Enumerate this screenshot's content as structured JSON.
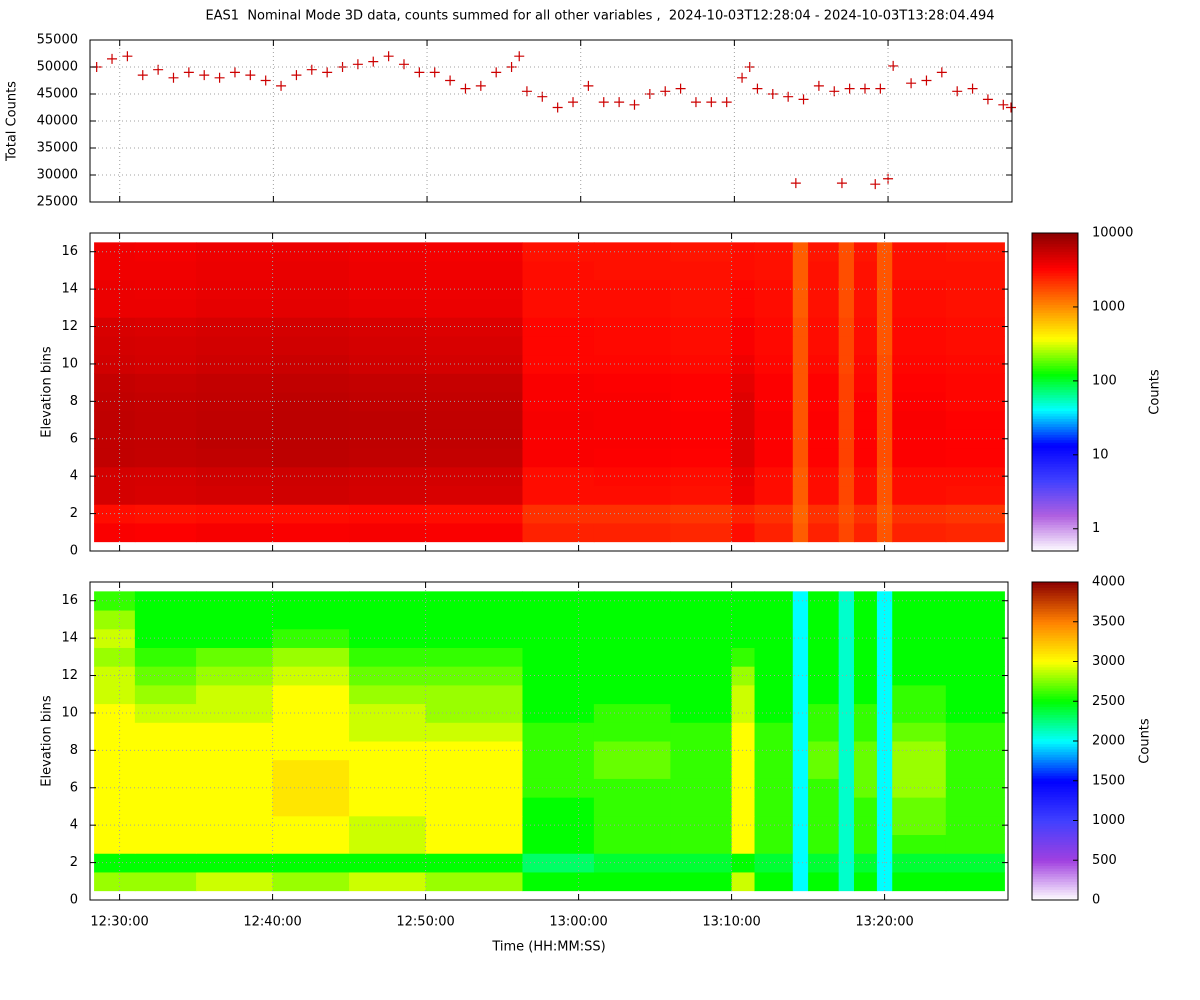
{
  "chart_data": [
    {
      "type": "scatter",
      "title": "EAS1  Nominal Mode 3D data, counts summed for all other variables ,  2024-10-03T12:28:04 - 2024-10-03T13:28:04.494",
      "ylabel": "Total Counts",
      "color": "#cc0000",
      "grid": true,
      "xlim": [
        "12:28:04",
        "13:28:04"
      ],
      "ylim": [
        25000,
        55000
      ],
      "yticks": [
        25000,
        30000,
        35000,
        40000,
        45000,
        50000,
        55000
      ],
      "x": [
        "12:28:30",
        "12:29:30",
        "12:30:30",
        "12:31:30",
        "12:32:30",
        "12:33:30",
        "12:34:30",
        "12:35:30",
        "12:36:30",
        "12:37:30",
        "12:38:30",
        "12:39:30",
        "12:40:30",
        "12:41:30",
        "12:42:30",
        "12:43:30",
        "12:44:30",
        "12:45:30",
        "12:46:30",
        "12:47:30",
        "12:48:30",
        "12:49:30",
        "12:50:30",
        "12:51:30",
        "12:52:30",
        "12:53:30",
        "12:54:30",
        "12:55:30",
        "12:56:00",
        "12:56:30",
        "12:57:30",
        "12:58:30",
        "12:59:30",
        "13:00:30",
        "13:01:30",
        "13:02:30",
        "13:03:30",
        "13:04:30",
        "13:05:30",
        "13:06:30",
        "13:07:30",
        "13:08:30",
        "13:09:30",
        "13:10:30",
        "13:11:00",
        "13:11:30",
        "13:12:30",
        "13:13:30",
        "13:14:00",
        "13:14:30",
        "13:15:30",
        "13:16:30",
        "13:17:00",
        "13:17:30",
        "13:18:30",
        "13:19:10",
        "13:19:30",
        "13:20:00",
        "13:20:20",
        "13:21:30",
        "13:22:30",
        "13:23:30",
        "13:24:30",
        "13:25:30",
        "13:26:30",
        "13:27:30",
        "13:28:00"
      ],
      "values": [
        50000,
        51500,
        52000,
        48500,
        49500,
        48000,
        49000,
        48500,
        48000,
        49000,
        48500,
        47500,
        46500,
        48500,
        49500,
        49000,
        50000,
        50500,
        51000,
        52000,
        50500,
        49000,
        49000,
        47500,
        46000,
        46500,
        49000,
        50000,
        52000,
        45500,
        44500,
        42500,
        43500,
        46500,
        43500,
        43500,
        43000,
        45000,
        45500,
        46000,
        43500,
        43500,
        43500,
        48000,
        50000,
        46000,
        45000,
        44500,
        28500,
        44000,
        46500,
        45500,
        28500,
        46000,
        46000,
        28300,
        46000,
        29300,
        50200,
        47000,
        47500,
        49000,
        45500,
        46000,
        44000,
        43000,
        42500
      ]
    },
    {
      "type": "heatmap",
      "ylabel": "Elevation bins",
      "zlabel": "Counts",
      "grid": true,
      "xlim": [
        "12:28:04",
        "13:28:04"
      ],
      "ylim": [
        0,
        17
      ],
      "yticks": [
        0,
        2,
        4,
        6,
        8,
        10,
        12,
        14,
        16
      ],
      "zlim": [
        0.5,
        10000
      ],
      "zticks": [
        1,
        10,
        100,
        1000,
        10000
      ],
      "zlog": true,
      "palette": [
        "#ffffff",
        "#b060e0",
        "#4040ff",
        "#0000ff",
        "#00ffff",
        "#00ff00",
        "#ffff00",
        "#ff8000",
        "#ff0000",
        "#8b0000"
      ],
      "xbins": [
        "12:28:20",
        "12:31:00",
        "12:35:00",
        "12:40:00",
        "12:45:00",
        "12:50:00",
        "12:56:20",
        "13:01:00",
        "13:06:00",
        "13:10:00",
        "13:11:30",
        "13:14:00",
        "13:15:00",
        "13:17:00",
        "13:18:00",
        "13:19:30",
        "13:20:30",
        "13:24:00",
        "13:27:50"
      ],
      "y": [
        1,
        2,
        3,
        4,
        5,
        6,
        7,
        8,
        9,
        10,
        11,
        12,
        13,
        14,
        15,
        16
      ],
      "z": [
        [
          3500,
          3400,
          3600,
          3500,
          3600,
          3500,
          2500,
          2500,
          2400,
          3000,
          2500,
          1500,
          2500,
          1800,
          2500,
          1600,
          2500,
          2400
        ],
        [
          3000,
          2900,
          3000,
          3000,
          3100,
          3000,
          2200,
          2200,
          2100,
          2500,
          2200,
          1400,
          2200,
          1700,
          2200,
          1500,
          2200,
          2100
        ],
        [
          5000,
          4800,
          5000,
          5200,
          5000,
          4800,
          3000,
          3000,
          2900,
          3800,
          3000,
          1500,
          3000,
          1800,
          3000,
          1600,
          3000,
          2900
        ],
        [
          5000,
          4900,
          5200,
          5300,
          5100,
          5000,
          3000,
          3100,
          3000,
          4000,
          3000,
          1500,
          3000,
          1800,
          3000,
          1600,
          3000,
          3000
        ],
        [
          6000,
          5800,
          6000,
          6200,
          6000,
          5800,
          3500,
          3400,
          3300,
          4500,
          3400,
          1600,
          3300,
          1900,
          3300,
          1700,
          3400,
          3300
        ],
        [
          6000,
          5900,
          6200,
          6300,
          6100,
          6000,
          3500,
          3500,
          3400,
          4500,
          3400,
          1600,
          3300,
          1900,
          3300,
          1700,
          3400,
          3300
        ],
        [
          6100,
          5900,
          6100,
          6300,
          6200,
          6000,
          3600,
          3500,
          3400,
          4500,
          3500,
          1600,
          3400,
          1900,
          3300,
          1700,
          3500,
          3300
        ],
        [
          6000,
          5800,
          6000,
          6200,
          6000,
          5900,
          3500,
          3500,
          3300,
          4500,
          3400,
          1600,
          3300,
          1900,
          3300,
          1700,
          3400,
          3200
        ],
        [
          5800,
          5600,
          5900,
          6000,
          5800,
          5700,
          3500,
          3400,
          3300,
          4200,
          3400,
          1600,
          3300,
          1900,
          3200,
          1700,
          3300,
          3200
        ],
        [
          5200,
          5000,
          5300,
          5500,
          5200,
          5000,
          3200,
          3200,
          3100,
          3800,
          3200,
          1600,
          3100,
          1800,
          3100,
          1700,
          3200,
          3100
        ],
        [
          5000,
          4900,
          5100,
          5200,
          5000,
          4800,
          3200,
          3100,
          3000,
          3500,
          3100,
          1600,
          3000,
          1800,
          3000,
          1600,
          3100,
          3000
        ],
        [
          4800,
          4700,
          4900,
          5000,
          4800,
          4600,
          3200,
          3100,
          3000,
          3500,
          3100,
          1600,
          3000,
          1800,
          3000,
          1600,
          3100,
          3000
        ],
        [
          4000,
          4000,
          4200,
          4300,
          4100,
          4000,
          3000,
          3000,
          2900,
          3200,
          3000,
          1500,
          2900,
          1700,
          2900,
          1600,
          3000,
          2900
        ],
        [
          4000,
          3900,
          4100,
          4200,
          4000,
          3900,
          3000,
          3000,
          2900,
          3200,
          3000,
          1500,
          2900,
          1700,
          2900,
          1600,
          3000,
          2900
        ],
        [
          3800,
          3800,
          4000,
          4100,
          3900,
          3800,
          3000,
          2900,
          2900,
          3000,
          2900,
          1500,
          2900,
          1700,
          2900,
          1600,
          2900,
          2900
        ],
        [
          3800,
          3700,
          3900,
          4000,
          3800,
          3700,
          2900,
          2900,
          2800,
          3000,
          2900,
          1500,
          2800,
          1700,
          2800,
          1600,
          2900,
          2800
        ]
      ]
    },
    {
      "type": "heatmap",
      "ylabel": "Elevation bins",
      "zlabel": "Counts",
      "xlabel": "Time (HH:MM:SS)",
      "grid": true,
      "xlim": [
        "12:28:04",
        "13:28:04"
      ],
      "xticks": [
        "12:30:00",
        "12:40:00",
        "12:50:00",
        "13:00:00",
        "13:10:00",
        "13:20:00"
      ],
      "ylim": [
        0,
        17
      ],
      "yticks": [
        0,
        2,
        4,
        6,
        8,
        10,
        12,
        14,
        16
      ],
      "zlim": [
        0,
        4000
      ],
      "zticks": [
        0,
        500,
        1000,
        1500,
        2000,
        2500,
        3000,
        3500,
        4000
      ],
      "zlog": false,
      "palette": [
        "#ffffff",
        "#a040e0",
        "#4040ff",
        "#0000ff",
        "#00ffff",
        "#00ff00",
        "#ffff00",
        "#ff8000",
        "#8b0000"
      ],
      "xbins": [
        "12:28:20",
        "12:31:00",
        "12:35:00",
        "12:40:00",
        "12:45:00",
        "12:50:00",
        "12:56:20",
        "13:01:00",
        "13:06:00",
        "13:10:00",
        "13:11:30",
        "13:14:00",
        "13:15:00",
        "13:17:00",
        "13:18:00",
        "13:19:30",
        "13:20:30",
        "13:24:00",
        "13:27:50"
      ],
      "y": [
        1,
        2,
        3,
        4,
        5,
        6,
        7,
        8,
        9,
        10,
        11,
        12,
        13,
        14,
        15,
        16
      ],
      "z": [
        [
          2800,
          2800,
          2900,
          2800,
          2900,
          2800,
          2500,
          2500,
          2500,
          2900,
          2500,
          2000,
          2500,
          2100,
          2500,
          2000,
          2500,
          2500
        ],
        [
          2500,
          2500,
          2500,
          2500,
          2500,
          2500,
          2300,
          2400,
          2400,
          2500,
          2400,
          2000,
          2400,
          2100,
          2400,
          2000,
          2400,
          2400
        ],
        [
          3000,
          3000,
          3000,
          3000,
          2900,
          3000,
          2500,
          2600,
          2600,
          3000,
          2600,
          2000,
          2600,
          2100,
          2600,
          2000,
          2600,
          2600
        ],
        [
          3000,
          3000,
          3000,
          3000,
          2900,
          3000,
          2500,
          2600,
          2600,
          3000,
          2600,
          2000,
          2600,
          2100,
          2600,
          2000,
          2700,
          2600
        ],
        [
          3000,
          3000,
          3000,
          3100,
          3000,
          3000,
          2500,
          2600,
          2600,
          3000,
          2600,
          2000,
          2600,
          2100,
          2600,
          2000,
          2700,
          2600
        ],
        [
          3000,
          3000,
          3000,
          3100,
          3000,
          3000,
          2600,
          2600,
          2600,
          3000,
          2600,
          2000,
          2600,
          2100,
          2700,
          2000,
          2800,
          2600
        ],
        [
          3000,
          3000,
          3000,
          3100,
          3000,
          3000,
          2600,
          2700,
          2600,
          3000,
          2600,
          2000,
          2700,
          2100,
          2700,
          2000,
          2800,
          2600
        ],
        [
          3000,
          3000,
          3000,
          3000,
          3000,
          3000,
          2600,
          2700,
          2600,
          3000,
          2600,
          2000,
          2700,
          2100,
          2700,
          2000,
          2800,
          2600
        ],
        [
          3000,
          3000,
          3000,
          3000,
          2900,
          2900,
          2600,
          2600,
          2600,
          3000,
          2600,
          2000,
          2600,
          2100,
          2600,
          2000,
          2700,
          2600
        ],
        [
          3000,
          2900,
          2900,
          3000,
          2900,
          2800,
          2500,
          2600,
          2500,
          2900,
          2500,
          2000,
          2600,
          2100,
          2600,
          2000,
          2600,
          2500
        ],
        [
          2900,
          2800,
          2900,
          3000,
          2800,
          2800,
          2500,
          2500,
          2500,
          2900,
          2500,
          2000,
          2500,
          2100,
          2500,
          2000,
          2600,
          2500
        ],
        [
          2900,
          2700,
          2800,
          2900,
          2700,
          2700,
          2500,
          2500,
          2500,
          2800,
          2500,
          2000,
          2500,
          2100,
          2500,
          2000,
          2500,
          2500
        ],
        [
          2800,
          2600,
          2700,
          2800,
          2600,
          2600,
          2500,
          2500,
          2500,
          2600,
          2500,
          2000,
          2500,
          2100,
          2500,
          2000,
          2500,
          2500
        ],
        [
          2900,
          2500,
          2500,
          2600,
          2500,
          2500,
          2500,
          2500,
          2500,
          2500,
          2500,
          2000,
          2500,
          2100,
          2500,
          2000,
          2500,
          2500
        ],
        [
          2800,
          2500,
          2500,
          2500,
          2500,
          2500,
          2500,
          2500,
          2500,
          2500,
          2500,
          2000,
          2500,
          2100,
          2500,
          2000,
          2500,
          2500
        ],
        [
          2600,
          2500,
          2500,
          2500,
          2500,
          2500,
          2500,
          2500,
          2500,
          2500,
          2500,
          2000,
          2500,
          2100,
          2500,
          2000,
          2500,
          2500
        ]
      ]
    }
  ]
}
